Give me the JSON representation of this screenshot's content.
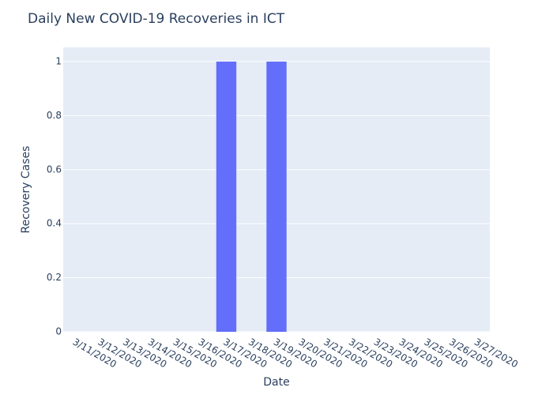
{
  "chart_data": {
    "type": "bar",
    "title": "Daily New COVID-19 Recoveries in ICT",
    "x_label": "Date",
    "y_label": "Recovery Cases",
    "categories": [
      "3/11/2020",
      "3/12/2020",
      "3/13/2020",
      "3/14/2020",
      "3/15/2020",
      "3/16/2020",
      "3/17/2020",
      "3/18/2020",
      "3/19/2020",
      "3/20/2020",
      "3/21/2020",
      "3/22/2020",
      "3/23/2020",
      "3/24/2020",
      "3/25/2020",
      "3/26/2020",
      "3/27/2020"
    ],
    "values": [
      0,
      0,
      0,
      0,
      0,
      0,
      1,
      0,
      1,
      0,
      0,
      0,
      0,
      0,
      0,
      0,
      0
    ],
    "color": "#636efa",
    "ylim": [
      0,
      1.0526
    ],
    "yticks": [
      0,
      0.2,
      0.4,
      0.6,
      0.8,
      1
    ],
    "grid": true
  }
}
